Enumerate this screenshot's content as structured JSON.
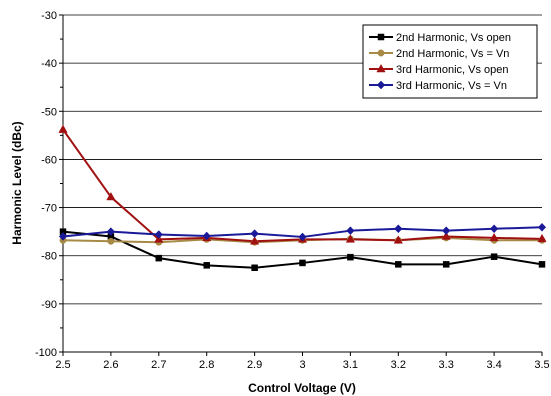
{
  "chart_data": {
    "type": "line",
    "xlabel": "Control Voltage (V)",
    "ylabel": "Harmonic Level (dBc)",
    "x": [
      2.5,
      2.6,
      2.7,
      2.8,
      2.9,
      3.0,
      3.1,
      3.2,
      3.3,
      3.4,
      3.5
    ],
    "x_tick_labels": [
      "2.5",
      "2.6",
      "2.7",
      "2.8",
      "2.9",
      "3",
      "3.1",
      "3.2",
      "3.3",
      "3.4",
      "3.5"
    ],
    "xlim": [
      2.5,
      3.5
    ],
    "ylim": [
      -100,
      -30
    ],
    "y_ticks": [
      -30,
      -40,
      -50,
      -60,
      -70,
      -80,
      -90,
      -100
    ],
    "y_tick_labels": [
      "-30",
      "-40",
      "-50",
      "-60",
      "-70",
      "-80",
      "-90",
      "-100"
    ],
    "grid": "horizontal",
    "legend_position": "top-right",
    "series": [
      {
        "name": "2nd Harmonic, Vs open",
        "color": "#000000",
        "marker": "square",
        "values": [
          -75,
          -76,
          -80.5,
          -82,
          -82.5,
          -81.5,
          -80.3,
          -81.8,
          -81.8,
          -80.2,
          -81.8
        ]
      },
      {
        "name": "2nd Harmonic, Vs = Vn",
        "color": "#A68A45",
        "marker": "circle",
        "values": [
          -76.8,
          -77,
          -77.2,
          -76.6,
          -77.2,
          -76.8,
          -76.5,
          -76.8,
          -76.3,
          -76.8,
          -76.8
        ]
      },
      {
        "name": "3rd Harmonic, Vs open",
        "color": "#A01010",
        "marker": "triangle",
        "values": [
          -53.8,
          -67.8,
          -76.6,
          -76.3,
          -77,
          -76.6,
          -76.6,
          -76.8,
          -76,
          -76.3,
          -76.5
        ]
      },
      {
        "name": "3rd Harmonic, Vs = Vn",
        "color": "#1A1A99",
        "marker": "diamond",
        "values": [
          -76,
          -75,
          -75.6,
          -75.9,
          -75.4,
          -76.1,
          -74.8,
          -74.4,
          -74.8,
          -74.4,
          -74.1
        ]
      }
    ]
  }
}
